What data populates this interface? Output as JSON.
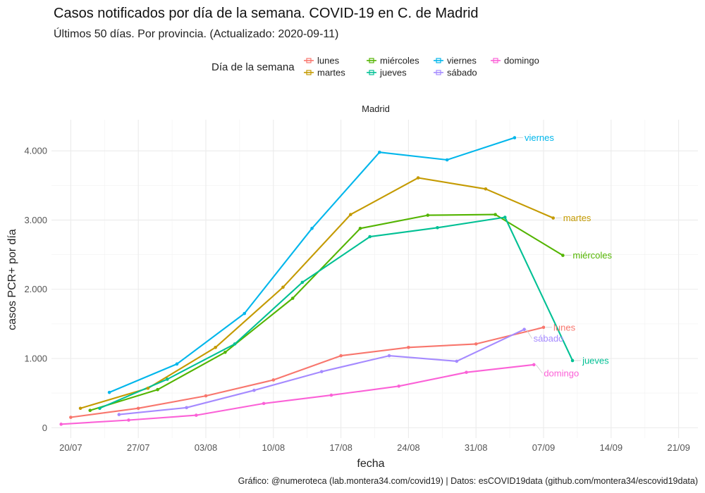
{
  "chart_data": {
    "type": "line",
    "title": "Casos notificados por día de la semana. COVID-19 en C. de Madrid",
    "subtitle": "Últimos 50 días. Por provincia. (Actualizado: 2020-09-11)",
    "facet": "Madrid",
    "xlabel": "fecha",
    "ylabel": "casos PCR+ por día",
    "caption": "Gráfico: @numeroteca (lab.montera34.com/covid19) | Datos: esCOVID19data (github.com/montera34/escovid19data)",
    "legend_title": "Día de la semana",
    "legend_position": "top",
    "grid": true,
    "xlim": [
      "2020-07-18",
      "2020-09-23"
    ],
    "ylim": [
      -150,
      4450
    ],
    "x_ticks": [
      "2020-07-20",
      "2020-07-27",
      "2020-08-03",
      "2020-08-10",
      "2020-08-17",
      "2020-08-24",
      "2020-08-31",
      "2020-09-07",
      "2020-09-14",
      "2020-09-21"
    ],
    "x_tick_labels": [
      "20/07",
      "27/07",
      "03/08",
      "10/08",
      "17/08",
      "24/08",
      "31/08",
      "07/09",
      "14/09",
      "21/09"
    ],
    "y_ticks": [
      0,
      1000,
      2000,
      3000,
      4000
    ],
    "y_tick_labels": [
      "0",
      "1.000",
      "2.000",
      "3.000",
      "4.000"
    ],
    "series": [
      {
        "name": "lunes",
        "color": "#F8766D",
        "points": [
          [
            "2020-07-20",
            150
          ],
          [
            "2020-07-27",
            280
          ],
          [
            "2020-08-03",
            460
          ],
          [
            "2020-08-10",
            690
          ],
          [
            "2020-08-17",
            1040
          ],
          [
            "2020-08-24",
            1160
          ],
          [
            "2020-08-31",
            1210
          ],
          [
            "2020-09-07",
            1450
          ]
        ]
      },
      {
        "name": "martes",
        "color": "#C49A00",
        "points": [
          [
            "2020-07-21",
            280
          ],
          [
            "2020-07-28",
            570
          ],
          [
            "2020-08-04",
            1160
          ],
          [
            "2020-08-11",
            2030
          ],
          [
            "2020-08-18",
            3080
          ],
          [
            "2020-08-25",
            3610
          ],
          [
            "2020-09-01",
            3450
          ],
          [
            "2020-09-08",
            3030
          ]
        ]
      },
      {
        "name": "miércoles",
        "color": "#53B400",
        "points": [
          [
            "2020-07-22",
            250
          ],
          [
            "2020-07-29",
            550
          ],
          [
            "2020-08-05",
            1090
          ],
          [
            "2020-08-12",
            1870
          ],
          [
            "2020-08-19",
            2880
          ],
          [
            "2020-08-26",
            3070
          ],
          [
            "2020-09-02",
            3080
          ],
          [
            "2020-09-09",
            2490
          ]
        ]
      },
      {
        "name": "jueves",
        "color": "#00C094",
        "points": [
          [
            "2020-07-23",
            280
          ],
          [
            "2020-07-30",
            700
          ],
          [
            "2020-08-06",
            1210
          ],
          [
            "2020-08-13",
            2100
          ],
          [
            "2020-08-20",
            2760
          ],
          [
            "2020-08-27",
            2890
          ],
          [
            "2020-09-03",
            3040
          ],
          [
            "2020-09-10",
            970
          ]
        ]
      },
      {
        "name": "viernes",
        "color": "#00B6EB",
        "points": [
          [
            "2020-07-24",
            510
          ],
          [
            "2020-07-31",
            920
          ],
          [
            "2020-08-07",
            1650
          ],
          [
            "2020-08-14",
            2880
          ],
          [
            "2020-08-21",
            3980
          ],
          [
            "2020-08-28",
            3870
          ],
          [
            "2020-09-04",
            4190
          ]
        ]
      },
      {
        "name": "sábado",
        "color": "#A58AFF",
        "points": [
          [
            "2020-07-25",
            190
          ],
          [
            "2020-08-01",
            290
          ],
          [
            "2020-08-08",
            540
          ],
          [
            "2020-08-15",
            810
          ],
          [
            "2020-08-22",
            1040
          ],
          [
            "2020-08-29",
            960
          ],
          [
            "2020-09-05",
            1420
          ]
        ]
      },
      {
        "name": "domingo",
        "color": "#FB61D7",
        "points": [
          [
            "2020-07-19",
            50
          ],
          [
            "2020-07-26",
            110
          ],
          [
            "2020-08-02",
            180
          ],
          [
            "2020-08-09",
            350
          ],
          [
            "2020-08-16",
            470
          ],
          [
            "2020-08-23",
            600
          ],
          [
            "2020-08-30",
            800
          ],
          [
            "2020-09-06",
            910
          ]
        ]
      }
    ]
  }
}
